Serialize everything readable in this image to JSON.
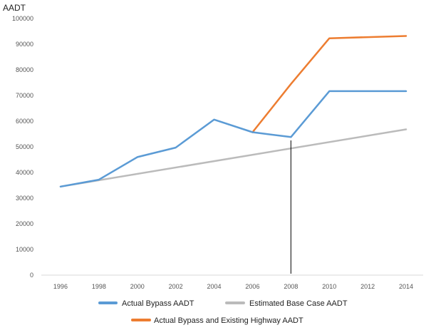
{
  "chart_data": {
    "type": "line",
    "title": "",
    "xlabel": "",
    "ylabel": "AADT",
    "ylim": [
      0,
      100000
    ],
    "xlim": [
      1995,
      2015
    ],
    "y_ticks": [
      0,
      10000,
      20000,
      30000,
      40000,
      50000,
      60000,
      70000,
      80000,
      90000,
      100000
    ],
    "y_tick_labels": [
      "0",
      "10000",
      "20000",
      "30000",
      "40000",
      "50000",
      "60000",
      "70000",
      "80000",
      "90000",
      "100000"
    ],
    "x_ticks": [
      1996,
      1998,
      2000,
      2002,
      2004,
      2006,
      2008,
      2010,
      2012,
      2014
    ],
    "x_tick_labels": [
      "1996",
      "1998",
      "2000",
      "2002",
      "2004",
      "2006",
      "2008",
      "2010",
      "2012",
      "2014"
    ],
    "grid": false,
    "legend_position": "bottom",
    "reference_line_x": 2008,
    "series": [
      {
        "name": "Estimated Base Case AADT",
        "color": "#BBBBBB",
        "x": [
          1996,
          2014
        ],
        "values": [
          34500,
          56800
        ]
      },
      {
        "name": "Actual Bypass and Existing Highway AADT",
        "color": "#ED7D31",
        "x": [
          2006,
          2008,
          2010,
          2014
        ],
        "values": [
          55700,
          74500,
          92300,
          93200
        ]
      },
      {
        "name": "Actual Bypass AADT",
        "color": "#5B9BD5",
        "x": [
          1996,
          1998,
          2000,
          2002,
          2004,
          2006,
          2008,
          2010,
          2014
        ],
        "values": [
          34500,
          37200,
          46000,
          49700,
          60600,
          55700,
          53800,
          71700,
          71700
        ]
      }
    ],
    "legend_order": [
      "Actual Bypass AADT",
      "Estimated Base Case AADT",
      "Actual Bypass and Existing Highway AADT"
    ]
  }
}
